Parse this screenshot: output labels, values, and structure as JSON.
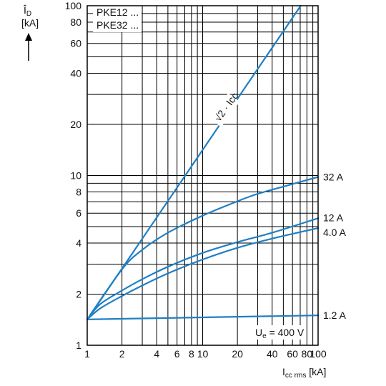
{
  "chart_data": {
    "type": "line",
    "x_scale": "log",
    "y_scale": "log",
    "xlim": [
      1,
      100
    ],
    "ylim": [
      1,
      100
    ],
    "grid": true,
    "x_tick_labels": [
      1,
      2,
      4,
      6,
      8,
      10,
      20,
      40,
      60,
      80,
      100
    ],
    "y_tick_labels": [
      1,
      2,
      4,
      6,
      8,
      10,
      20,
      40,
      60,
      80,
      100
    ],
    "ylabel": {
      "main": "Î",
      "sub": "D",
      "unit": "[kA]"
    },
    "xlabel": {
      "main": "I",
      "sub": "cc rms",
      "unit": "[kA]"
    },
    "legend_lines": [
      "PKE12 ...",
      "PKE32 ..."
    ],
    "annotation": {
      "main": "U",
      "sub": "e",
      "rest": " = 400 V"
    },
    "diagonal_label": "√2 · Icc",
    "colors": {
      "curve": "#1f7fc4",
      "grid": "#000000"
    },
    "series": [
      {
        "name": "√2 · Icc",
        "x": [
          1,
          70.7
        ],
        "y": [
          1.414,
          100
        ]
      },
      {
        "name": "32 A",
        "x": [
          1,
          2,
          3,
          5,
          10,
          20,
          30,
          50,
          100
        ],
        "y": [
          1.42,
          2.8,
          3.65,
          4.6,
          5.8,
          7.05,
          7.8,
          8.6,
          9.8
        ]
      },
      {
        "name": "12 A",
        "x": [
          1,
          1.3,
          2,
          3,
          5,
          10,
          20,
          40,
          100
        ],
        "y": [
          1.42,
          1.75,
          2.1,
          2.45,
          2.9,
          3.5,
          4.05,
          4.6,
          5.6
        ]
      },
      {
        "name": "4.0 A",
        "x": [
          1,
          1.3,
          2,
          3,
          5,
          10,
          20,
          40,
          100
        ],
        "y": [
          1.42,
          1.65,
          1.95,
          2.25,
          2.65,
          3.2,
          3.75,
          4.25,
          4.9
        ]
      },
      {
        "name": "1.2 A",
        "x": [
          1,
          100
        ],
        "y": [
          1.42,
          1.5
        ]
      }
    ]
  }
}
